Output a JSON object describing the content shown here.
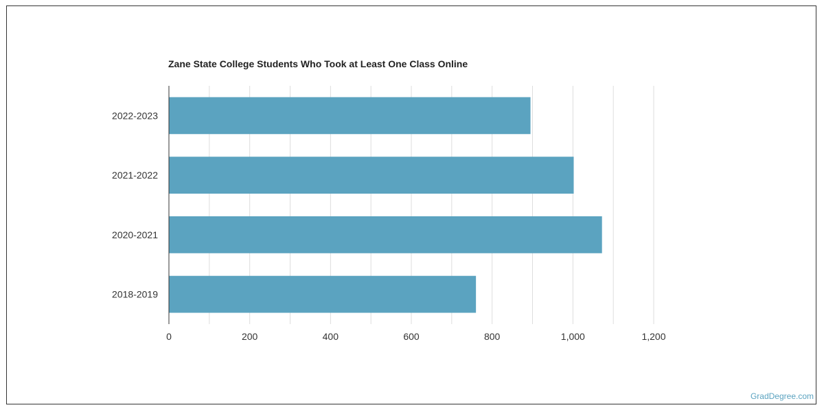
{
  "chart_data": {
    "type": "bar",
    "orientation": "horizontal",
    "title": "Zane State College Students Who Took at Least One Class Online",
    "categories": [
      "2022-2023",
      "2021-2022",
      "2020-2021",
      "2018-2019"
    ],
    "values": [
      895,
      1002,
      1072,
      760
    ],
    "xlim": [
      0,
      1200
    ],
    "x_ticks": [
      0,
      200,
      400,
      600,
      800,
      1000,
      1200
    ],
    "x_tick_labels": [
      "0",
      "200",
      "400",
      "600",
      "800",
      "1,000",
      "1,200"
    ],
    "xlabel": "",
    "ylabel": "",
    "grid": true,
    "legend": "none",
    "bar_color": "#5ba3c0"
  },
  "watermark": "GradDegree.com"
}
